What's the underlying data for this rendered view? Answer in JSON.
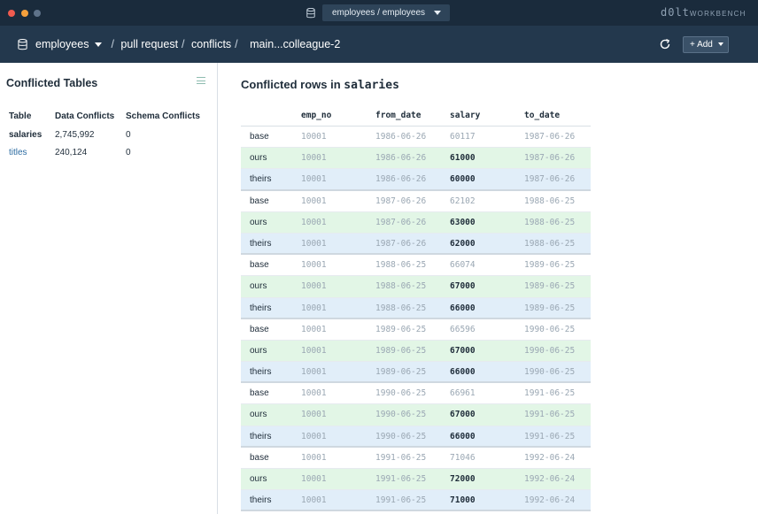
{
  "titlebar": {
    "connection": "employees / employees",
    "brand_main": "d0lt",
    "brand_sub": "WORKBENCH"
  },
  "navbar": {
    "database": "employees",
    "crumb_pull_request": "pull request",
    "crumb_conflicts": "conflicts",
    "crumb_branch": "main...colleague-2",
    "add_label": "+ Add"
  },
  "sidebar": {
    "title": "Conflicted Tables",
    "headers": [
      "Table",
      "Data Conflicts",
      "Schema Conflicts"
    ],
    "rows": [
      {
        "table": "salaries",
        "data": "2,745,992",
        "schema": "0"
      },
      {
        "table": "titles",
        "data": "240,124",
        "schema": "0"
      }
    ]
  },
  "main": {
    "title_prefix": "Conflicted rows in",
    "title_table": "salaries",
    "columns": [
      "emp_no",
      "from_date",
      "salary",
      "to_date"
    ],
    "rows": [
      {
        "kind": "base",
        "emp_no": "10001",
        "from_date": "1986-06-26",
        "salary": "60117",
        "to_date": "1987-06-26"
      },
      {
        "kind": "ours",
        "emp_no": "10001",
        "from_date": "1986-06-26",
        "salary": "61000",
        "to_date": "1987-06-26"
      },
      {
        "kind": "theirs",
        "emp_no": "10001",
        "from_date": "1986-06-26",
        "salary": "60000",
        "to_date": "1987-06-26"
      },
      {
        "kind": "base",
        "emp_no": "10001",
        "from_date": "1987-06-26",
        "salary": "62102",
        "to_date": "1988-06-25"
      },
      {
        "kind": "ours",
        "emp_no": "10001",
        "from_date": "1987-06-26",
        "salary": "63000",
        "to_date": "1988-06-25"
      },
      {
        "kind": "theirs",
        "emp_no": "10001",
        "from_date": "1987-06-26",
        "salary": "62000",
        "to_date": "1988-06-25"
      },
      {
        "kind": "base",
        "emp_no": "10001",
        "from_date": "1988-06-25",
        "salary": "66074",
        "to_date": "1989-06-25"
      },
      {
        "kind": "ours",
        "emp_no": "10001",
        "from_date": "1988-06-25",
        "salary": "67000",
        "to_date": "1989-06-25"
      },
      {
        "kind": "theirs",
        "emp_no": "10001",
        "from_date": "1988-06-25",
        "salary": "66000",
        "to_date": "1989-06-25"
      },
      {
        "kind": "base",
        "emp_no": "10001",
        "from_date": "1989-06-25",
        "salary": "66596",
        "to_date": "1990-06-25"
      },
      {
        "kind": "ours",
        "emp_no": "10001",
        "from_date": "1989-06-25",
        "salary": "67000",
        "to_date": "1990-06-25"
      },
      {
        "kind": "theirs",
        "emp_no": "10001",
        "from_date": "1989-06-25",
        "salary": "66000",
        "to_date": "1990-06-25"
      },
      {
        "kind": "base",
        "emp_no": "10001",
        "from_date": "1990-06-25",
        "salary": "66961",
        "to_date": "1991-06-25"
      },
      {
        "kind": "ours",
        "emp_no": "10001",
        "from_date": "1990-06-25",
        "salary": "67000",
        "to_date": "1991-06-25"
      },
      {
        "kind": "theirs",
        "emp_no": "10001",
        "from_date": "1990-06-25",
        "salary": "66000",
        "to_date": "1991-06-25"
      },
      {
        "kind": "base",
        "emp_no": "10001",
        "from_date": "1991-06-25",
        "salary": "71046",
        "to_date": "1992-06-24"
      },
      {
        "kind": "ours",
        "emp_no": "10001",
        "from_date": "1991-06-25",
        "salary": "72000",
        "to_date": "1992-06-24"
      },
      {
        "kind": "theirs",
        "emp_no": "10001",
        "from_date": "1991-06-25",
        "salary": "71000",
        "to_date": "1992-06-24"
      }
    ]
  },
  "colors": {
    "titlebar": "#1a2b3c",
    "navbar": "#23384d",
    "ours_row": "#e2f6e6",
    "theirs_row": "#e1eef9"
  }
}
